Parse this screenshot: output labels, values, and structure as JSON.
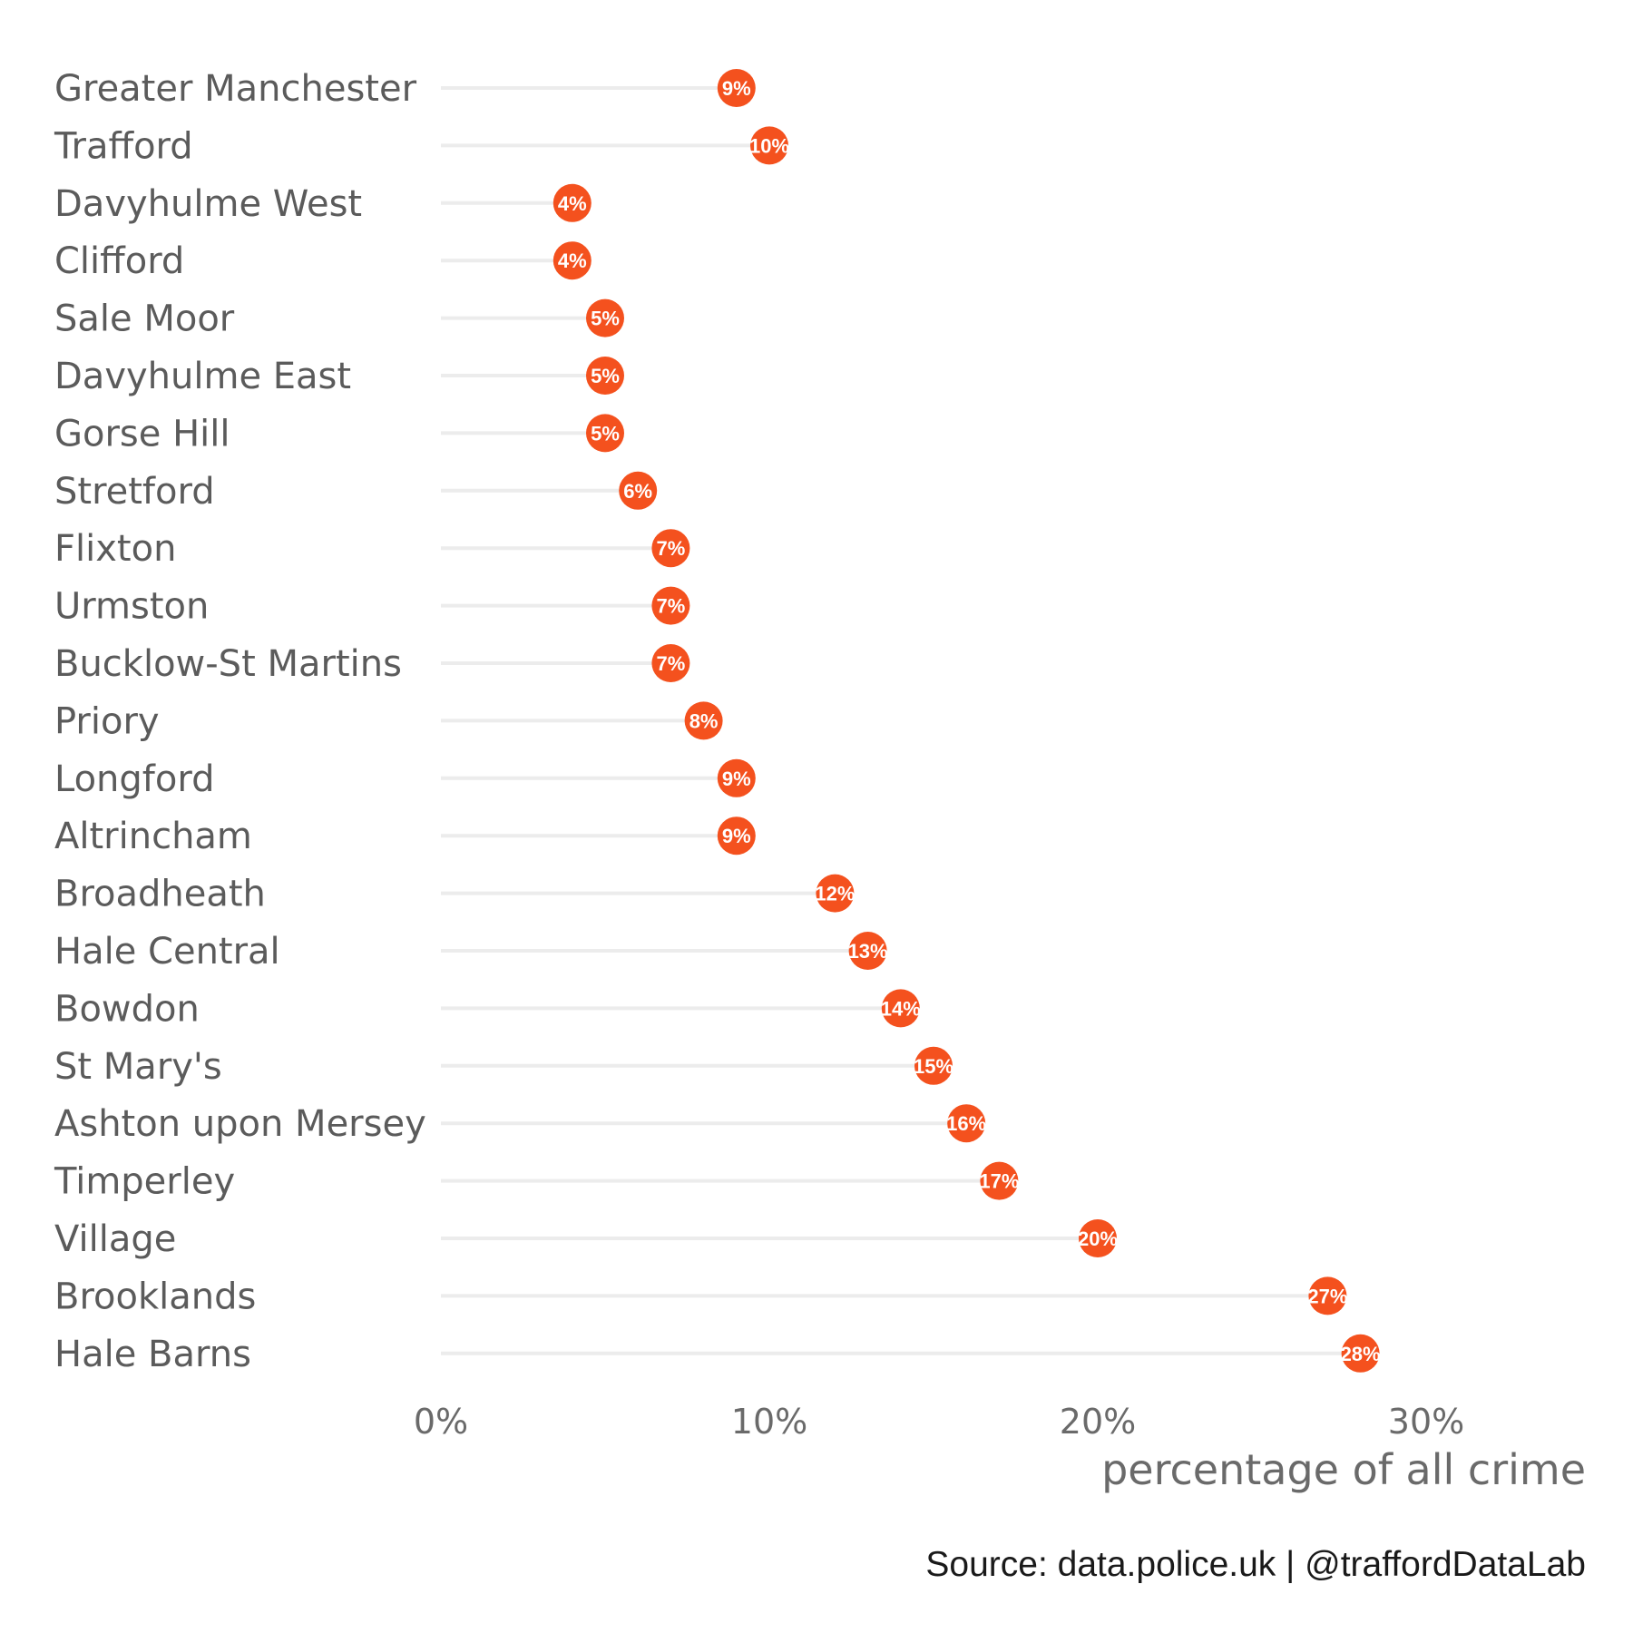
{
  "chart_data": {
    "type": "lollipop",
    "orientation": "horizontal",
    "categories": [
      "Greater Manchester",
      "Trafford",
      "Davyhulme West",
      "Clifford",
      "Sale Moor",
      "Davyhulme East",
      "Gorse Hill",
      "Stretford",
      "Flixton",
      "Urmston",
      "Bucklow-St Martins",
      "Priory",
      "Longford",
      "Altrincham",
      "Broadheath",
      "Hale Central",
      "Bowdon",
      "St Mary's",
      "Ashton upon Mersey",
      "Timperley",
      "Village",
      "Brooklands",
      "Hale Barns"
    ],
    "values": [
      9,
      10,
      4,
      4,
      5,
      5,
      5,
      6,
      7,
      7,
      7,
      8,
      9,
      9,
      12,
      13,
      14,
      15,
      16,
      17,
      20,
      27,
      28
    ],
    "data_labels": [
      "9%",
      "10%",
      "4%",
      "4%",
      "5%",
      "5%",
      "5%",
      "6%",
      "7%",
      "7%",
      "7%",
      "8%",
      "9%",
      "9%",
      "12%",
      "13%",
      "14%",
      "15%",
      "16%",
      "17%",
      "20%",
      "27%",
      "28%"
    ],
    "xlim": [
      0,
      35
    ],
    "x_ticks": [
      0,
      10,
      20,
      30
    ],
    "x_tick_labels": [
      "0%",
      "10%",
      "20%",
      "30%"
    ],
    "xlabel": "percentage of all crime",
    "ylabel": "",
    "title": "",
    "grid": false,
    "legend": "none",
    "colors": {
      "point": "#f4511e",
      "stem": "#ececec",
      "category_text": "#5b5b5b",
      "tick_text": "#6a6a6a",
      "point_text": "#ffffff"
    }
  },
  "caption": "Source: data.police.uk  |  @traffordDataLab"
}
